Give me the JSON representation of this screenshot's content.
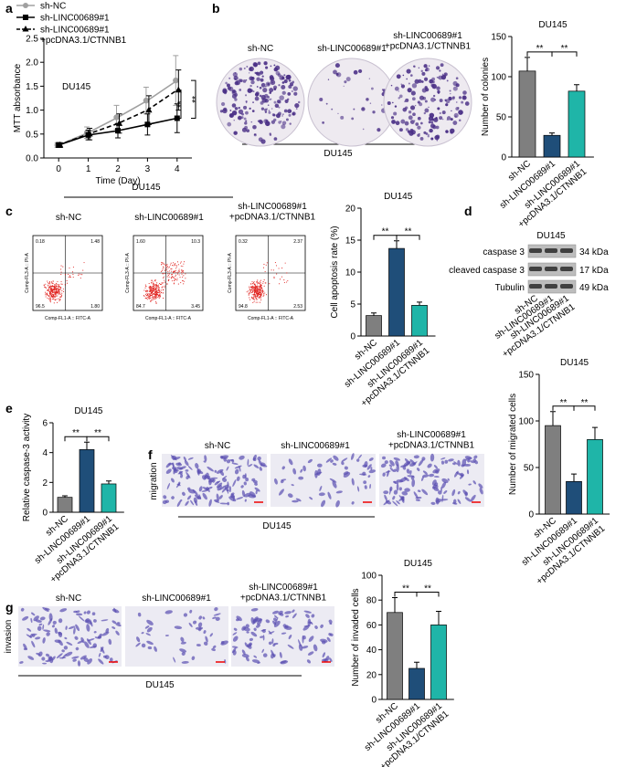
{
  "figure": {
    "panel_letters": [
      "a",
      "b",
      "c",
      "d",
      "e",
      "f",
      "g"
    ],
    "b": {
      "images": [
        "sh-NC",
        "sh-LINC00689#1",
        "sh-LINC00689#1\n+pcDNA3.1/CTNNB1"
      ],
      "group": "DU145"
    },
    "c": {
      "group": "DU145",
      "x_label": "Comp-FL1-A :: FITC-A",
      "y_label": "Comp-FL3-A :: PI-A",
      "plots": [
        {
          "label": "sh-NC",
          "quadrants": [
            "0.18",
            "1.48",
            "96.5",
            "1.80"
          ]
        },
        {
          "label": "sh-LINC00689#1",
          "quadrants": [
            "1.60",
            "10.3",
            "84.7",
            "3.45"
          ]
        },
        {
          "label": "sh-LINC00689#1\n+pcDNA3.1/CTNNB1",
          "quadrants": [
            "0.32",
            "2.37",
            "94.8",
            "2.53"
          ]
        }
      ]
    },
    "d": {
      "title": "DU145",
      "bands": [
        {
          "name": "caspase 3",
          "size": "34 kDa"
        },
        {
          "name": "cleaved caspase 3",
          "size": "17 kDa"
        },
        {
          "name": "Tubulin",
          "size": "49 kDa"
        }
      ],
      "lanes": [
        "sh-NC",
        "sh-LINC00689#1",
        "sh-LINC00689#1\n+pcDNA3.1/CTNNB1"
      ]
    },
    "f": {
      "row_label": "migration",
      "images": [
        "sh-NC",
        "sh-LINC00689#1",
        "sh-LINC00689#1\n+pcDNA3.1/CTNNB1"
      ],
      "group": "DU145"
    },
    "g": {
      "row_label": "invasion",
      "images": [
        "sh-NC",
        "sh-LINC00689#1",
        "sh-LINC00689#1\n+pcDNA3.1/CTNNB1"
      ],
      "group": "DU145"
    }
  },
  "chart_data": [
    {
      "type": "line",
      "annotations": [
        "DU145",
        "**",
        "**"
      ],
      "x_label": "Time (Day)",
      "y_label": "MTT absorbance",
      "x": [
        0,
        1,
        2,
        3,
        4
      ],
      "xlim": [
        -0.5,
        4.5
      ],
      "xticks": [
        0,
        1,
        2,
        3,
        4
      ],
      "ylim": [
        0,
        2.5
      ],
      "yticks": [
        {
          "value": 0,
          "label": "0.0"
        },
        0.5,
        {
          "value": 1,
          "label": "1.0"
        },
        1.5,
        {
          "value": 2,
          "label": "2.0"
        },
        2.5
      ],
      "series": [
        {
          "name": "sh-NC",
          "color": "#a0a0a0",
          "marker": "circle",
          "dash": false,
          "values": [
            0.27,
            0.53,
            0.85,
            1.2,
            1.62
          ],
          "errors": [
            0.05,
            0.12,
            0.25,
            0.28,
            0.52
          ]
        },
        {
          "name": "sh-LINC00689#1",
          "color": "#000000",
          "marker": "square",
          "dash": false,
          "values": [
            0.27,
            0.48,
            0.57,
            0.7,
            0.83
          ],
          "errors": [
            0.05,
            0.1,
            0.15,
            0.22,
            0.3
          ]
        },
        {
          "name": "sh-LINC00689#1\n+pcDNA3.1/CTNNB1",
          "color": "#000000",
          "marker": "triangle",
          "dash": true,
          "values": [
            0.27,
            0.5,
            0.72,
            1.0,
            1.42
          ],
          "errors": [
            0.05,
            0.12,
            0.2,
            0.3,
            0.42
          ]
        }
      ]
    },
    {
      "type": "bar",
      "title": "DU145",
      "y_label": "Number of colonies",
      "categories": [
        "sh-NC",
        "sh-LINC00689#1",
        "sh-LINC00689#1\n+pcDNA3.1/CTNNB1"
      ],
      "colors": [
        "#7f7f7f",
        "#1f4e79",
        "#1fb5a8"
      ],
      "values": [
        107,
        27,
        82
      ],
      "errors": [
        17,
        3,
        8
      ],
      "ylim": [
        0,
        150
      ],
      "yticks": [
        0,
        50,
        100,
        150
      ],
      "annotations": [
        "**",
        "**"
      ]
    },
    {
      "type": "bar",
      "title": "DU145",
      "y_label": "Cell apoptosis rate (%)",
      "categories": [
        "sh-NC",
        "sh-LINC00689#1",
        "sh-LINC00689#1\n+pcDNA3.1/CTNNB1"
      ],
      "colors": [
        "#7f7f7f",
        "#1f4e79",
        "#1fb5a8"
      ],
      "values": [
        3.2,
        13.7,
        4.8
      ],
      "errors": [
        0.4,
        1.2,
        0.5
      ],
      "ylim": [
        0,
        20
      ],
      "yticks": [
        0,
        5,
        10,
        15,
        20
      ],
      "annotations": [
        "**",
        "**"
      ]
    },
    {
      "type": "bar",
      "title": "DU145",
      "y_label": "Relative caspase-3 activity",
      "categories": [
        "sh-NC",
        "sh-LINC00689#1",
        "sh-LINC00689#1\n+pcDNA3.1/CTNNB1"
      ],
      "colors": [
        "#7f7f7f",
        "#1f4e79",
        "#1fb5a8"
      ],
      "values": [
        1.0,
        4.2,
        1.9
      ],
      "errors": [
        0.1,
        0.5,
        0.2
      ],
      "ylim": [
        0,
        6
      ],
      "yticks": [
        0,
        2,
        4,
        6
      ],
      "annotations": [
        "**",
        "**"
      ]
    },
    {
      "type": "bar",
      "title": "DU145",
      "y_label": "Number of migrated cells",
      "categories": [
        "sh-NC",
        "sh-LINC00689#1",
        "sh-LINC00689#1\n+pcDNA3.1/CTNNB1"
      ],
      "colors": [
        "#7f7f7f",
        "#1f4e79",
        "#1fb5a8"
      ],
      "values": [
        95,
        35,
        80
      ],
      "errors": [
        15,
        8,
        13
      ],
      "ylim": [
        0,
        150
      ],
      "yticks": [
        0,
        50,
        100,
        150
      ],
      "annotations": [
        "**",
        "**"
      ]
    },
    {
      "type": "bar",
      "title": "DU145",
      "y_label": "Number of invaded cells",
      "categories": [
        "sh-NC",
        "sh-LINC00689#1",
        "sh-LINC00689#1\n+pcDNA3.1/CTNNB1"
      ],
      "colors": [
        "#7f7f7f",
        "#1f4e79",
        "#1fb5a8"
      ],
      "values": [
        70,
        25,
        60
      ],
      "errors": [
        12,
        5,
        11
      ],
      "ylim": [
        0,
        100
      ],
      "yticks": [
        0,
        20,
        40,
        60,
        80,
        100
      ],
      "annotations": [
        "**",
        "**"
      ]
    }
  ]
}
